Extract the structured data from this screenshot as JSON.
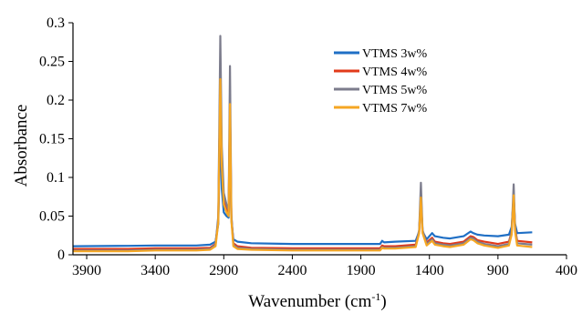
{
  "chart_data": {
    "type": "line",
    "xlabel": "Wavenumber (cm",
    "xlabel_sup": "-1",
    "xlabel_suffix": ")",
    "ylabel": "Absorbance",
    "xlim": [
      4000,
      400
    ],
    "x_reversed": true,
    "ylim": [
      0,
      0.3
    ],
    "x_ticks": [
      3900,
      3400,
      2900,
      2400,
      1900,
      1400,
      900,
      400
    ],
    "y_ticks": [
      0,
      0.05,
      0.1,
      0.15,
      0.2,
      0.25,
      0.3
    ],
    "y_tick_labels": [
      "0",
      "0.05",
      "0.1",
      "0.15",
      "0.2",
      "0.25",
      "0.3"
    ],
    "grid": false,
    "legend_position": "top-right",
    "series": [
      {
        "name": "VTMS 3w%",
        "color": "#1f6fc5",
        "points": [
          [
            4000,
            0.011
          ],
          [
            3600,
            0.0115
          ],
          [
            3400,
            0.012
          ],
          [
            3100,
            0.012
          ],
          [
            3000,
            0.013
          ],
          [
            2960,
            0.017
          ],
          [
            2940,
            0.04
          ],
          [
            2925,
            0.17
          ],
          [
            2915,
            0.085
          ],
          [
            2900,
            0.055
          ],
          [
            2880,
            0.05
          ],
          [
            2865,
            0.048
          ],
          [
            2855,
            0.17
          ],
          [
            2845,
            0.045
          ],
          [
            2830,
            0.02
          ],
          [
            2800,
            0.017
          ],
          [
            2700,
            0.015
          ],
          [
            2400,
            0.014
          ],
          [
            2000,
            0.014
          ],
          [
            1760,
            0.014
          ],
          [
            1745,
            0.018
          ],
          [
            1730,
            0.016
          ],
          [
            1650,
            0.017
          ],
          [
            1500,
            0.018
          ],
          [
            1475,
            0.03
          ],
          [
            1462,
            0.072
          ],
          [
            1450,
            0.03
          ],
          [
            1420,
            0.02
          ],
          [
            1380,
            0.028
          ],
          [
            1360,
            0.024
          ],
          [
            1300,
            0.022
          ],
          [
            1250,
            0.021
          ],
          [
            1150,
            0.024
          ],
          [
            1100,
            0.03
          ],
          [
            1080,
            0.028
          ],
          [
            1050,
            0.026
          ],
          [
            1000,
            0.025
          ],
          [
            900,
            0.024
          ],
          [
            820,
            0.026
          ],
          [
            800,
            0.036
          ],
          [
            785,
            0.075
          ],
          [
            775,
            0.04
          ],
          [
            760,
            0.028
          ],
          [
            650,
            0.029
          ]
        ]
      },
      {
        "name": "VTMS 4w%",
        "color": "#e23a1a",
        "points": [
          [
            4000,
            0.0075
          ],
          [
            3600,
            0.0075
          ],
          [
            3400,
            0.0085
          ],
          [
            3100,
            0.0085
          ],
          [
            3000,
            0.009
          ],
          [
            2960,
            0.014
          ],
          [
            2940,
            0.045
          ],
          [
            2925,
            0.228
          ],
          [
            2915,
            0.12
          ],
          [
            2900,
            0.07
          ],
          [
            2880,
            0.06
          ],
          [
            2865,
            0.055
          ],
          [
            2855,
            0.196
          ],
          [
            2845,
            0.05
          ],
          [
            2830,
            0.015
          ],
          [
            2800,
            0.011
          ],
          [
            2700,
            0.009
          ],
          [
            2400,
            0.0085
          ],
          [
            2000,
            0.0085
          ],
          [
            1760,
            0.0085
          ],
          [
            1745,
            0.012
          ],
          [
            1730,
            0.011
          ],
          [
            1650,
            0.011
          ],
          [
            1500,
            0.013
          ],
          [
            1475,
            0.03
          ],
          [
            1462,
            0.076
          ],
          [
            1450,
            0.03
          ],
          [
            1420,
            0.016
          ],
          [
            1380,
            0.022
          ],
          [
            1360,
            0.017
          ],
          [
            1300,
            0.015
          ],
          [
            1250,
            0.014
          ],
          [
            1150,
            0.017
          ],
          [
            1100,
            0.024
          ],
          [
            1080,
            0.023
          ],
          [
            1050,
            0.019
          ],
          [
            1000,
            0.017
          ],
          [
            900,
            0.014
          ],
          [
            820,
            0.017
          ],
          [
            800,
            0.03
          ],
          [
            785,
            0.078
          ],
          [
            775,
            0.035
          ],
          [
            760,
            0.018
          ],
          [
            650,
            0.016
          ]
        ]
      },
      {
        "name": "VTMS 5w%",
        "color": "#7c7c8c",
        "points": [
          [
            4000,
            0.0055
          ],
          [
            3600,
            0.0055
          ],
          [
            3400,
            0.0065
          ],
          [
            3100,
            0.0065
          ],
          [
            3000,
            0.0075
          ],
          [
            2960,
            0.013
          ],
          [
            2940,
            0.05
          ],
          [
            2925,
            0.283
          ],
          [
            2915,
            0.14
          ],
          [
            2900,
            0.08
          ],
          [
            2880,
            0.065
          ],
          [
            2865,
            0.058
          ],
          [
            2855,
            0.244
          ],
          [
            2845,
            0.052
          ],
          [
            2830,
            0.013
          ],
          [
            2800,
            0.009
          ],
          [
            2700,
            0.0075
          ],
          [
            2400,
            0.0065
          ],
          [
            2000,
            0.0065
          ],
          [
            1760,
            0.0065
          ],
          [
            1745,
            0.01
          ],
          [
            1730,
            0.009
          ],
          [
            1650,
            0.009
          ],
          [
            1500,
            0.011
          ],
          [
            1475,
            0.032
          ],
          [
            1462,
            0.093
          ],
          [
            1450,
            0.032
          ],
          [
            1420,
            0.014
          ],
          [
            1380,
            0.02
          ],
          [
            1360,
            0.015
          ],
          [
            1300,
            0.013
          ],
          [
            1250,
            0.012
          ],
          [
            1150,
            0.015
          ],
          [
            1100,
            0.022
          ],
          [
            1080,
            0.021
          ],
          [
            1050,
            0.017
          ],
          [
            1000,
            0.014
          ],
          [
            900,
            0.011
          ],
          [
            820,
            0.014
          ],
          [
            800,
            0.03
          ],
          [
            785,
            0.091
          ],
          [
            775,
            0.035
          ],
          [
            760,
            0.015
          ],
          [
            650,
            0.013
          ]
        ]
      },
      {
        "name": "VTMS 7w%",
        "color": "#f5a623",
        "points": [
          [
            4000,
            0.0045
          ],
          [
            3600,
            0.0045
          ],
          [
            3400,
            0.0055
          ],
          [
            3100,
            0.0055
          ],
          [
            3000,
            0.0065
          ],
          [
            2960,
            0.011
          ],
          [
            2940,
            0.042
          ],
          [
            2925,
            0.227
          ],
          [
            2915,
            0.115
          ],
          [
            2900,
            0.065
          ],
          [
            2880,
            0.055
          ],
          [
            2865,
            0.05
          ],
          [
            2855,
            0.195
          ],
          [
            2845,
            0.045
          ],
          [
            2830,
            0.011
          ],
          [
            2800,
            0.0075
          ],
          [
            2700,
            0.0065
          ],
          [
            2400,
            0.0055
          ],
          [
            2000,
            0.0055
          ],
          [
            1760,
            0.0055
          ],
          [
            1745,
            0.009
          ],
          [
            1730,
            0.008
          ],
          [
            1650,
            0.008
          ],
          [
            1500,
            0.01
          ],
          [
            1475,
            0.028
          ],
          [
            1462,
            0.074
          ],
          [
            1450,
            0.028
          ],
          [
            1420,
            0.012
          ],
          [
            1380,
            0.018
          ],
          [
            1360,
            0.013
          ],
          [
            1300,
            0.011
          ],
          [
            1250,
            0.01
          ],
          [
            1150,
            0.013
          ],
          [
            1100,
            0.02
          ],
          [
            1080,
            0.019
          ],
          [
            1050,
            0.015
          ],
          [
            1000,
            0.012
          ],
          [
            900,
            0.009
          ],
          [
            820,
            0.012
          ],
          [
            800,
            0.026
          ],
          [
            785,
            0.077
          ],
          [
            775,
            0.03
          ],
          [
            760,
            0.012
          ],
          [
            650,
            0.01
          ]
        ]
      }
    ]
  }
}
